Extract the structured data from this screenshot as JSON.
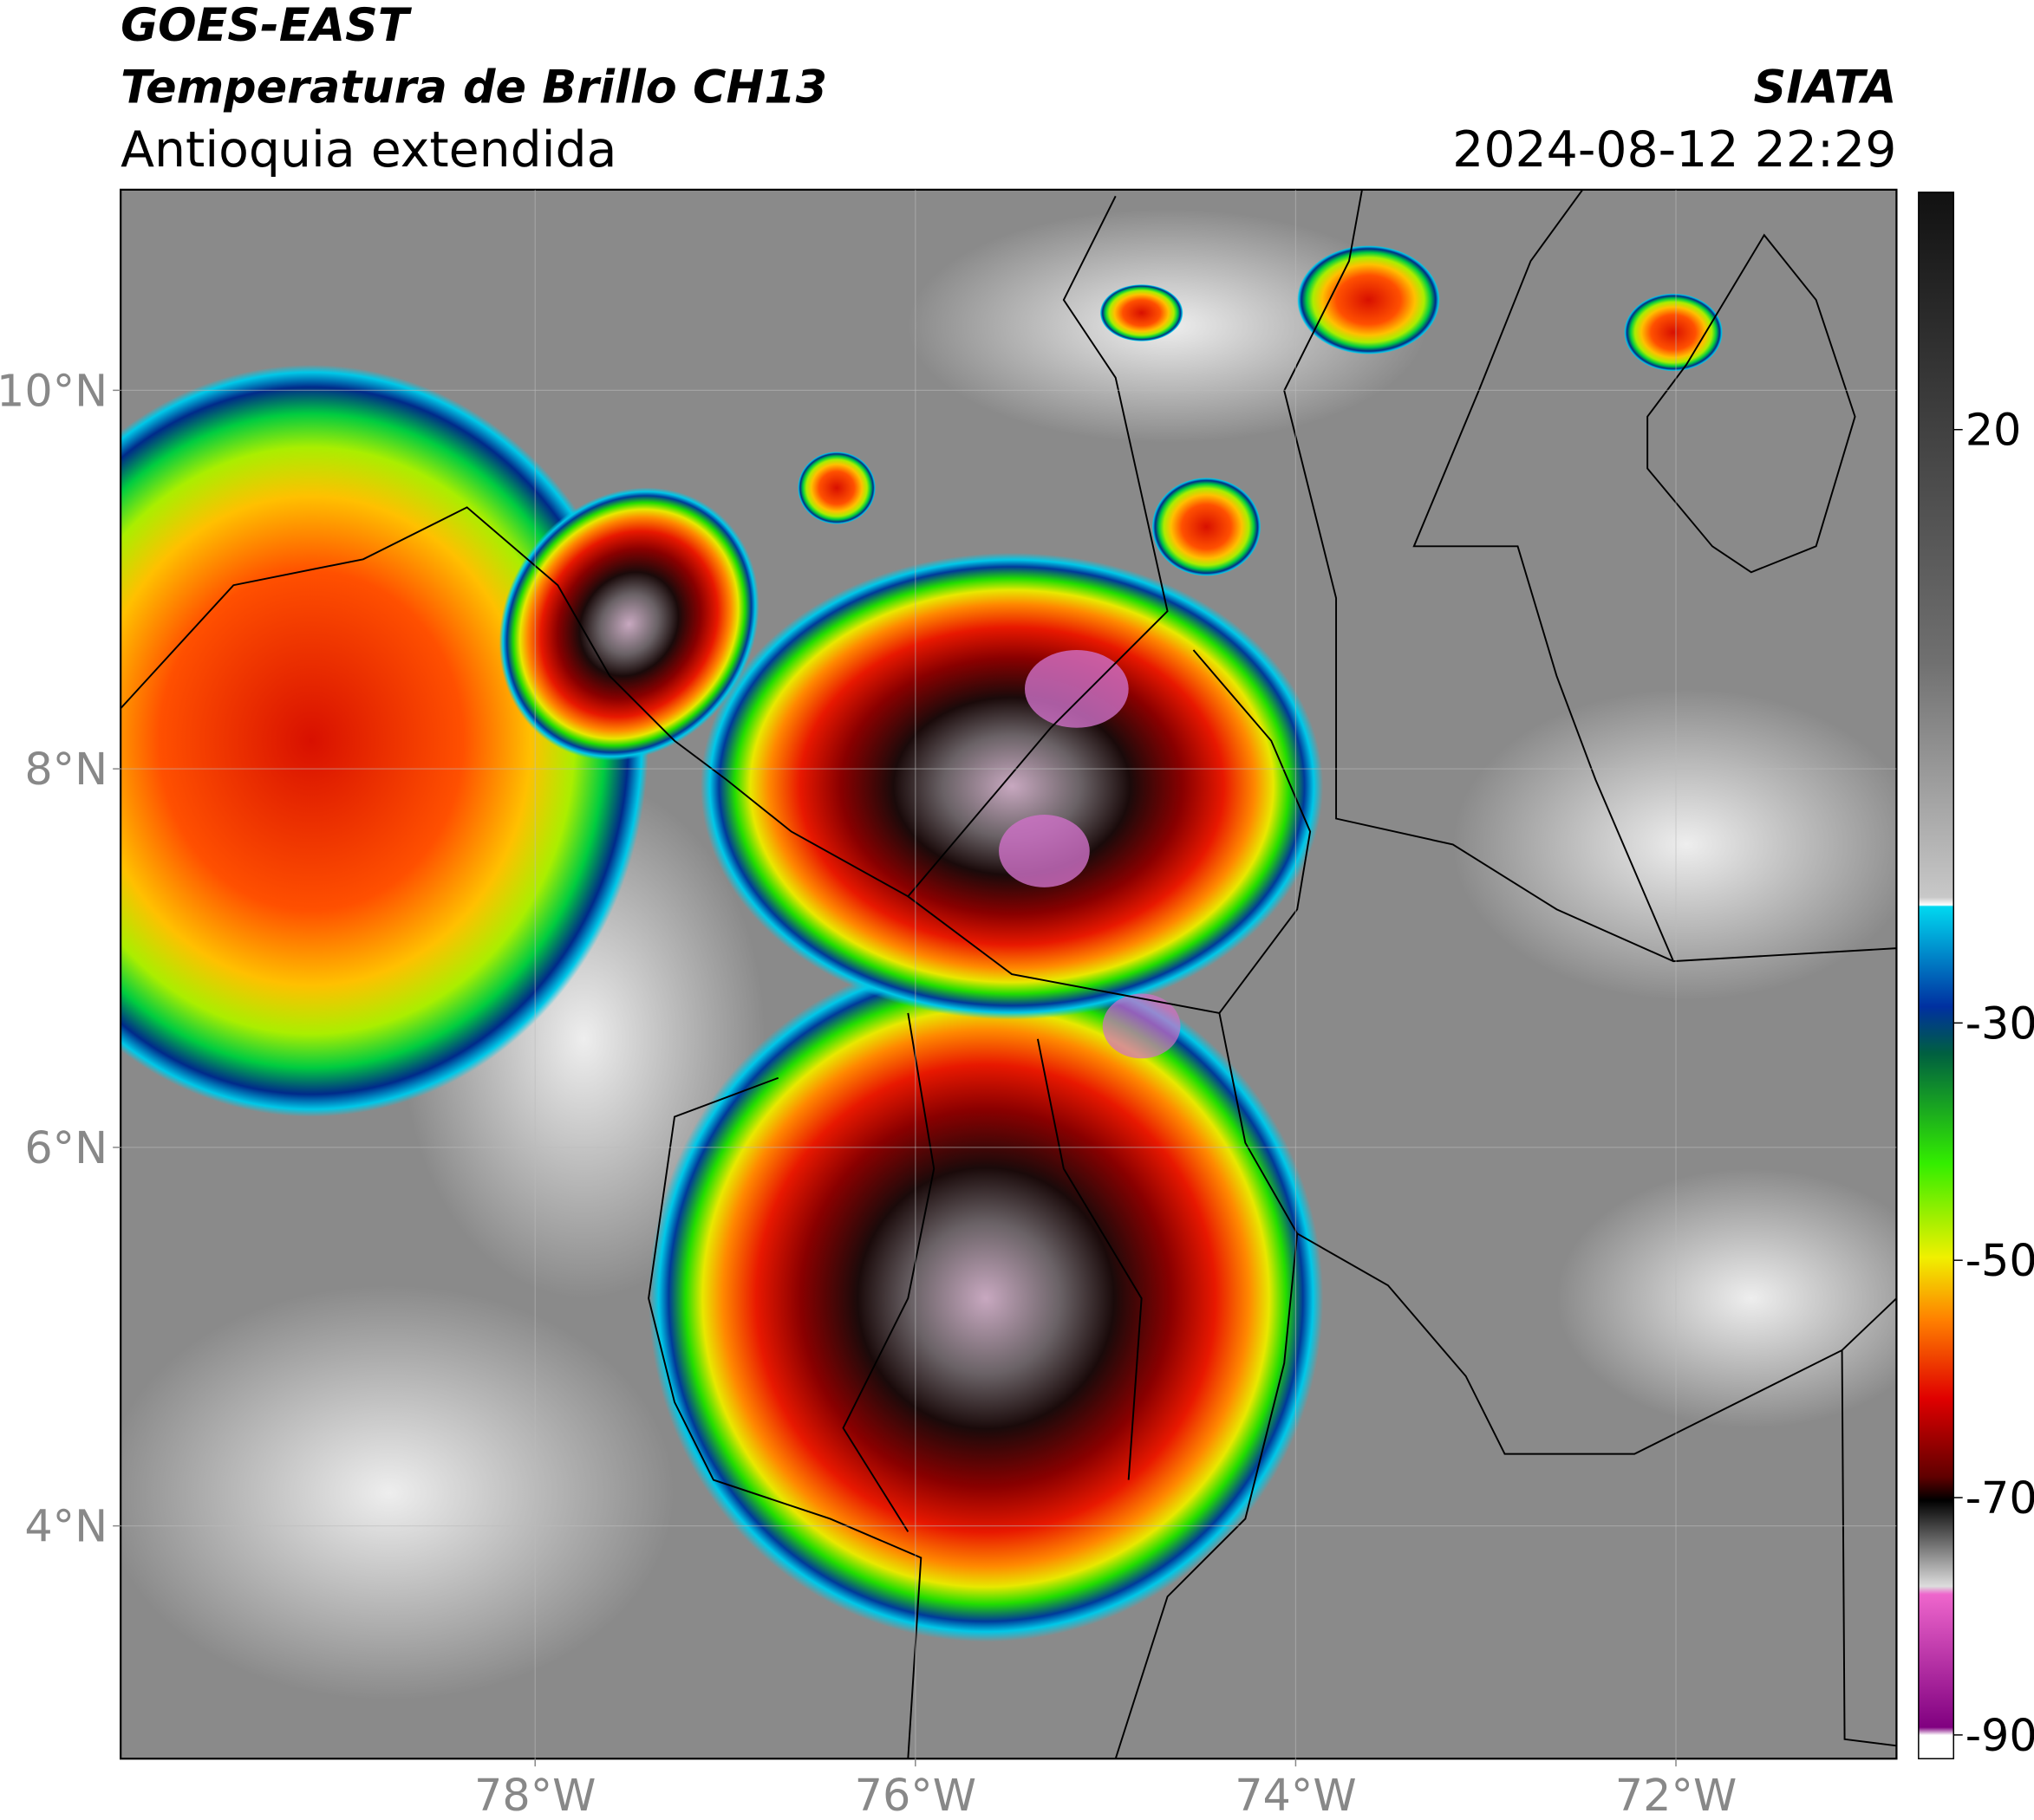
{
  "header": {
    "title": "GOES-EAST",
    "subtitle": "Temperatura de Brillo CH13",
    "region": "Antioquia extendida",
    "source": "SIATA",
    "datetime": "2024-08-12 22:29"
  },
  "map": {
    "xlim": [
      -80.18,
      -70.84
    ],
    "ylim": [
      2.77,
      11.06
    ],
    "xticks": [
      {
        "value": -78,
        "label": "78°W"
      },
      {
        "value": -76,
        "label": "76°W"
      },
      {
        "value": -74,
        "label": "74°W"
      },
      {
        "value": -72,
        "label": "72°W"
      }
    ],
    "yticks": [
      {
        "value": 10,
        "label": "10°N"
      },
      {
        "value": 8,
        "label": "8°N"
      },
      {
        "value": 6,
        "label": "6°N"
      },
      {
        "value": 4,
        "label": "4°N"
      }
    ]
  },
  "colorbar": {
    "range": [
      -92,
      40
    ],
    "ticks": [
      20,
      -30,
      -50,
      -70,
      -90
    ]
  }
}
